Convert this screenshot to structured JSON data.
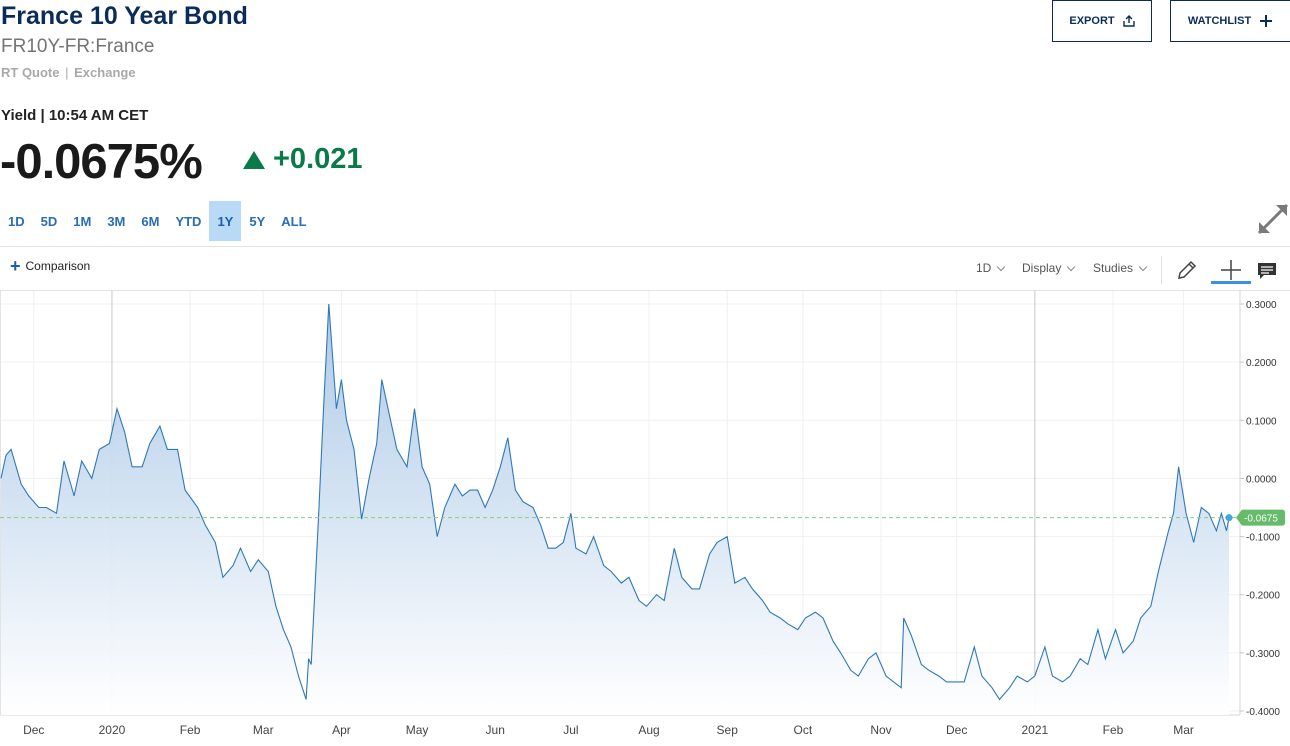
{
  "header": {
    "title": "France 10 Year Bond",
    "symbol": "FR10Y-FR:France",
    "quote_type": "RT Quote",
    "separator": "|",
    "exchange": "Exchange",
    "export_label": "EXPORT",
    "watchlist_label": "WATCHLIST"
  },
  "quote": {
    "yield_label": "Yield | 10:54 AM CET",
    "value": "-0.0675%",
    "change": "+0.021",
    "direction": "up",
    "change_color": "#0a7a48"
  },
  "ranges": {
    "items": [
      "1D",
      "5D",
      "1M",
      "3M",
      "6M",
      "YTD",
      "1Y",
      "5Y",
      "ALL"
    ],
    "active": "1Y"
  },
  "toolbar": {
    "comparison_label": "Comparison",
    "interval_label": "1D",
    "display_label": "Display",
    "studies_label": "Studies",
    "icons": [
      "pencil-icon",
      "crosshair-icon",
      "comment-icon"
    ]
  },
  "chart_data": {
    "type": "area",
    "xlabels": [
      "Dec",
      "2020",
      "Feb",
      "Mar",
      "Apr",
      "May",
      "Jun",
      "Jul",
      "Aug",
      "Sep",
      "Oct",
      "Nov",
      "Dec",
      "2021",
      "Feb",
      "Mar"
    ],
    "ytick_labels": [
      "0.3000",
      "0.2000",
      "0.1000",
      "0.0000",
      "-0.1000",
      "-0.2000",
      "-0.3000",
      "-0.4000"
    ],
    "ylim": [
      -0.4,
      0.3
    ],
    "last_value_label": "-0.0675",
    "last_value": -0.0675,
    "line_color": "#2f78b8",
    "marker_color": "#66bb6a",
    "points": [
      [
        "2019-11-18",
        0.0
      ],
      [
        "2019-11-20",
        0.04
      ],
      [
        "2019-11-22",
        0.05
      ],
      [
        "2019-11-26",
        -0.01
      ],
      [
        "2019-11-29",
        -0.03
      ],
      [
        "2019-12-03",
        -0.05
      ],
      [
        "2019-12-06",
        -0.05
      ],
      [
        "2019-12-10",
        -0.06
      ],
      [
        "2019-12-13",
        0.03
      ],
      [
        "2019-12-17",
        -0.03
      ],
      [
        "2019-12-20",
        0.03
      ],
      [
        "2019-12-24",
        0.0
      ],
      [
        "2019-12-27",
        0.05
      ],
      [
        "2019-12-31",
        0.06
      ],
      [
        "2020-01-03",
        0.12
      ],
      [
        "2020-01-06",
        0.08
      ],
      [
        "2020-01-09",
        0.02
      ],
      [
        "2020-01-13",
        0.02
      ],
      [
        "2020-01-16",
        0.06
      ],
      [
        "2020-01-20",
        0.09
      ],
      [
        "2020-01-23",
        0.05
      ],
      [
        "2020-01-27",
        0.05
      ],
      [
        "2020-01-30",
        -0.02
      ],
      [
        "2020-02-04",
        -0.05
      ],
      [
        "2020-02-07",
        -0.08
      ],
      [
        "2020-02-11",
        -0.11
      ],
      [
        "2020-02-14",
        -0.17
      ],
      [
        "2020-02-18",
        -0.15
      ],
      [
        "2020-02-21",
        -0.12
      ],
      [
        "2020-02-25",
        -0.16
      ],
      [
        "2020-02-28",
        -0.14
      ],
      [
        "2020-03-03",
        -0.16
      ],
      [
        "2020-03-06",
        -0.22
      ],
      [
        "2020-03-09",
        -0.26
      ],
      [
        "2020-03-12",
        -0.29
      ],
      [
        "2020-03-15",
        -0.34
      ],
      [
        "2020-03-18",
        -0.38
      ],
      [
        "2020-03-19",
        -0.31
      ],
      [
        "2020-03-20",
        -0.32
      ],
      [
        "2020-03-23",
        -0.06
      ],
      [
        "2020-03-25",
        0.13
      ],
      [
        "2020-03-27",
        0.3
      ],
      [
        "2020-03-30",
        0.12
      ],
      [
        "2020-04-01",
        0.17
      ],
      [
        "2020-04-03",
        0.1
      ],
      [
        "2020-04-06",
        0.05
      ],
      [
        "2020-04-09",
        -0.07
      ],
      [
        "2020-04-12",
        0.0
      ],
      [
        "2020-04-15",
        0.06
      ],
      [
        "2020-04-17",
        0.17
      ],
      [
        "2020-04-20",
        0.11
      ],
      [
        "2020-04-23",
        0.05
      ],
      [
        "2020-04-27",
        0.02
      ],
      [
        "2020-04-30",
        0.12
      ],
      [
        "2020-05-03",
        0.02
      ],
      [
        "2020-05-06",
        -0.01
      ],
      [
        "2020-05-09",
        -0.1
      ],
      [
        "2020-05-12",
        -0.05
      ],
      [
        "2020-05-16",
        -0.01
      ],
      [
        "2020-05-19",
        -0.03
      ],
      [
        "2020-05-22",
        -0.02
      ],
      [
        "2020-05-25",
        -0.02
      ],
      [
        "2020-05-28",
        -0.05
      ],
      [
        "2020-05-31",
        -0.02
      ],
      [
        "2020-06-03",
        0.02
      ],
      [
        "2020-06-06",
        0.07
      ],
      [
        "2020-06-09",
        -0.02
      ],
      [
        "2020-06-12",
        -0.04
      ],
      [
        "2020-06-16",
        -0.05
      ],
      [
        "2020-06-19",
        -0.08
      ],
      [
        "2020-06-22",
        -0.12
      ],
      [
        "2020-06-25",
        -0.12
      ],
      [
        "2020-06-28",
        -0.11
      ],
      [
        "2020-07-01",
        -0.06
      ],
      [
        "2020-07-03",
        -0.12
      ],
      [
        "2020-07-07",
        -0.13
      ],
      [
        "2020-07-10",
        -0.1
      ],
      [
        "2020-07-14",
        -0.15
      ],
      [
        "2020-07-17",
        -0.16
      ],
      [
        "2020-07-21",
        -0.18
      ],
      [
        "2020-07-24",
        -0.17
      ],
      [
        "2020-07-28",
        -0.21
      ],
      [
        "2020-07-31",
        -0.22
      ],
      [
        "2020-08-04",
        -0.2
      ],
      [
        "2020-08-07",
        -0.21
      ],
      [
        "2020-08-11",
        -0.12
      ],
      [
        "2020-08-14",
        -0.17
      ],
      [
        "2020-08-18",
        -0.19
      ],
      [
        "2020-08-21",
        -0.19
      ],
      [
        "2020-08-25",
        -0.13
      ],
      [
        "2020-08-28",
        -0.11
      ],
      [
        "2020-09-01",
        -0.1
      ],
      [
        "2020-09-04",
        -0.18
      ],
      [
        "2020-09-08",
        -0.17
      ],
      [
        "2020-09-11",
        -0.19
      ],
      [
        "2020-09-15",
        -0.21
      ],
      [
        "2020-09-18",
        -0.23
      ],
      [
        "2020-09-22",
        -0.24
      ],
      [
        "2020-09-25",
        -0.25
      ],
      [
        "2020-09-29",
        -0.26
      ],
      [
        "2020-10-02",
        -0.24
      ],
      [
        "2020-10-06",
        -0.23
      ],
      [
        "2020-10-09",
        -0.24
      ],
      [
        "2020-10-13",
        -0.28
      ],
      [
        "2020-10-16",
        -0.3
      ],
      [
        "2020-10-20",
        -0.33
      ],
      [
        "2020-10-23",
        -0.34
      ],
      [
        "2020-10-27",
        -0.31
      ],
      [
        "2020-10-30",
        -0.3
      ],
      [
        "2020-11-03",
        -0.34
      ],
      [
        "2020-11-06",
        -0.35
      ],
      [
        "2020-11-09",
        -0.36
      ],
      [
        "2020-11-10",
        -0.24
      ],
      [
        "2020-11-13",
        -0.27
      ],
      [
        "2020-11-17",
        -0.32
      ],
      [
        "2020-11-20",
        -0.33
      ],
      [
        "2020-11-24",
        -0.34
      ],
      [
        "2020-11-27",
        -0.35
      ],
      [
        "2020-12-01",
        -0.35
      ],
      [
        "2020-12-04",
        -0.35
      ],
      [
        "2020-12-08",
        -0.29
      ],
      [
        "2020-12-11",
        -0.34
      ],
      [
        "2020-12-15",
        -0.36
      ],
      [
        "2020-12-18",
        -0.38
      ],
      [
        "2020-12-22",
        -0.36
      ],
      [
        "2020-12-25",
        -0.34
      ],
      [
        "2020-12-29",
        -0.35
      ],
      [
        "2021-01-01",
        -0.34
      ],
      [
        "2021-01-05",
        -0.29
      ],
      [
        "2021-01-08",
        -0.34
      ],
      [
        "2021-01-12",
        -0.35
      ],
      [
        "2021-01-15",
        -0.34
      ],
      [
        "2021-01-19",
        -0.31
      ],
      [
        "2021-01-22",
        -0.32
      ],
      [
        "2021-01-26",
        -0.26
      ],
      [
        "2021-01-29",
        -0.31
      ],
      [
        "2021-02-02",
        -0.26
      ],
      [
        "2021-02-05",
        -0.3
      ],
      [
        "2021-02-09",
        -0.28
      ],
      [
        "2021-02-12",
        -0.24
      ],
      [
        "2021-02-16",
        -0.22
      ],
      [
        "2021-02-19",
        -0.16
      ],
      [
        "2021-02-23",
        -0.09
      ],
      [
        "2021-02-25",
        -0.06
      ],
      [
        "2021-02-27",
        0.02
      ],
      [
        "2021-03-02",
        -0.06
      ],
      [
        "2021-03-05",
        -0.11
      ],
      [
        "2021-03-08",
        -0.05
      ],
      [
        "2021-03-11",
        -0.06
      ],
      [
        "2021-03-14",
        -0.09
      ],
      [
        "2021-03-16",
        -0.06
      ],
      [
        "2021-03-18",
        -0.09
      ],
      [
        "2021-03-19",
        -0.0675
      ]
    ]
  }
}
